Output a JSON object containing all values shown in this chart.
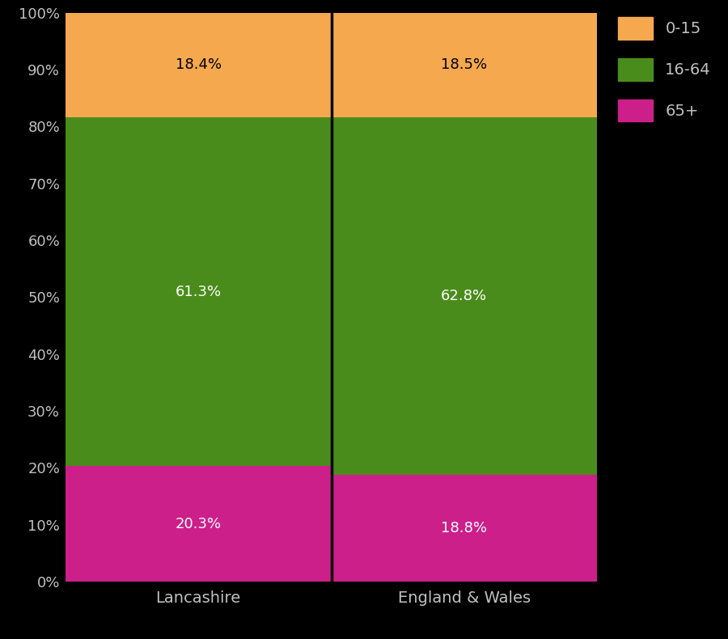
{
  "categories": [
    "Lancashire",
    "England & Wales"
  ],
  "segments": {
    "65+": [
      20.3,
      18.8
    ],
    "16-64": [
      61.3,
      62.8
    ],
    "0-15": [
      18.4,
      18.5
    ]
  },
  "colors": {
    "65+": "#cc1f8a",
    "16-64": "#4a8c1c",
    "0-15": "#f5a84e"
  },
  "label_colors": {
    "65+": "white",
    "16-64": "white",
    "0-15": "black"
  },
  "background_color": "#000000",
  "text_color": "#c0c0c0",
  "ytick_labels": [
    "0%",
    "10%",
    "20%",
    "30%",
    "40%",
    "50%",
    "60%",
    "70%",
    "80%",
    "90%",
    "100%"
  ],
  "legend_labels": [
    "0-15",
    "16-64",
    "65+"
  ],
  "figsize": [
    9.0,
    7.9
  ],
  "dpi": 100
}
